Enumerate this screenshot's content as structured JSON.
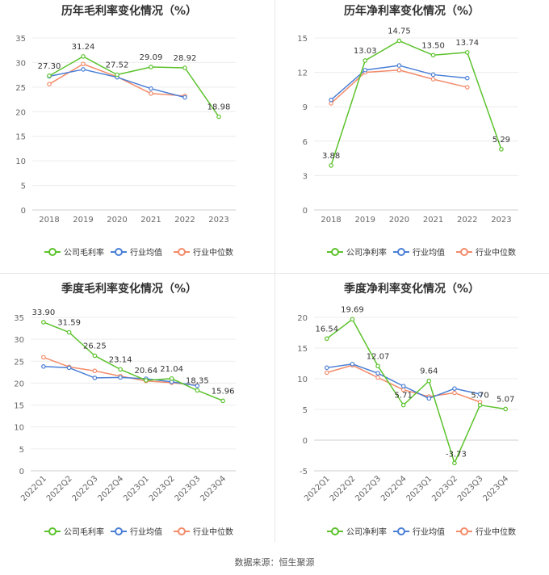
{
  "source_text": "数据来源：恒生聚源",
  "legend_colors": {
    "company": "#5cc22c",
    "industry_avg": "#4a7fd6",
    "industry_median": "#f28b6a"
  },
  "chart_data": [
    {
      "type": "line",
      "title": "历年毛利率变化情况（%）",
      "categories": [
        "2018",
        "2019",
        "2020",
        "2021",
        "2022",
        "2023"
      ],
      "ylim": [
        0,
        35
      ],
      "yticks": [
        0,
        5,
        10,
        15,
        20,
        25,
        30,
        35
      ],
      "grid": true,
      "legend_position": "bottom",
      "series": [
        {
          "name": "公司毛利率",
          "values": [
            27.3,
            31.24,
            27.52,
            29.09,
            28.92,
            18.98
          ],
          "labels": [
            "27.30",
            "31.24",
            "27.52",
            "29.09",
            "28.92",
            "18.98"
          ]
        },
        {
          "name": "行业均值",
          "values": [
            27.2,
            28.6,
            27.0,
            24.7,
            22.9,
            null
          ]
        },
        {
          "name": "行业中位数",
          "values": [
            25.6,
            29.7,
            27.1,
            23.7,
            23.2,
            null
          ]
        }
      ]
    },
    {
      "type": "line",
      "title": "历年净利率变化情况（%）",
      "categories": [
        "2018",
        "2019",
        "2020",
        "2021",
        "2022",
        "2023"
      ],
      "ylim": [
        0,
        15
      ],
      "yticks": [
        0,
        3,
        6,
        9,
        12,
        15
      ],
      "grid": true,
      "legend_position": "bottom",
      "series": [
        {
          "name": "公司净利率",
          "values": [
            3.88,
            13.03,
            14.75,
            13.5,
            13.74,
            5.29
          ],
          "labels": [
            "3.88",
            "13.03",
            "14.75",
            "13.50",
            "13.74",
            "5.29"
          ]
        },
        {
          "name": "行业均值",
          "values": [
            9.6,
            12.2,
            12.6,
            11.8,
            11.5,
            null
          ]
        },
        {
          "name": "行业中位数",
          "values": [
            9.3,
            12.0,
            12.2,
            11.4,
            10.7,
            null
          ]
        }
      ]
    },
    {
      "type": "line",
      "title": "季度毛利率变化情况（%）",
      "categories": [
        "2022Q1",
        "2022Q2",
        "2022Q3",
        "2022Q4",
        "2023Q1",
        "2023Q2",
        "2023Q3",
        "2023Q4"
      ],
      "ylim": [
        0,
        35
      ],
      "yticks": [
        0,
        5,
        10,
        15,
        20,
        25,
        30,
        35
      ],
      "grid": true,
      "legend_position": "bottom",
      "series": [
        {
          "name": "公司毛利率",
          "values": [
            33.9,
            31.59,
            26.25,
            23.14,
            20.64,
            21.04,
            18.35,
            15.96
          ],
          "labels": [
            "33.90",
            "31.59",
            "26.25",
            "23.14",
            "20.64",
            "21.04",
            "18.35",
            "15.96"
          ]
        },
        {
          "name": "行业均值",
          "values": [
            23.8,
            23.5,
            21.2,
            21.3,
            21.0,
            20.3,
            19.4,
            null
          ]
        },
        {
          "name": "行业中位数",
          "values": [
            25.9,
            23.7,
            22.8,
            21.6,
            20.5,
            20.1,
            19.5,
            null
          ]
        }
      ]
    },
    {
      "type": "line",
      "title": "季度净利率变化情况（%）",
      "categories": [
        "2022Q1",
        "2022Q2",
        "2022Q3",
        "2022Q4",
        "2023Q1",
        "2023Q2",
        "2023Q3",
        "2023Q4"
      ],
      "ylim": [
        -5,
        20
      ],
      "yticks": [
        -5,
        0,
        5,
        10,
        15,
        20
      ],
      "grid": true,
      "legend_position": "bottom",
      "series": [
        {
          "name": "公司净利率",
          "values": [
            16.54,
            19.69,
            12.07,
            5.71,
            9.64,
            -3.73,
            5.7,
            5.07
          ],
          "labels": [
            "16.54",
            "19.69",
            "12.07",
            "5.71",
            "9.64",
            "-3.73",
            "5.70",
            "5.07"
          ]
        },
        {
          "name": "行业均值",
          "values": [
            11.8,
            12.4,
            10.9,
            8.8,
            6.8,
            8.4,
            7.5,
            null
          ]
        },
        {
          "name": "行业中位数",
          "values": [
            11.0,
            12.2,
            10.2,
            8.2,
            7.1,
            7.7,
            6.2,
            null
          ]
        }
      ]
    }
  ]
}
